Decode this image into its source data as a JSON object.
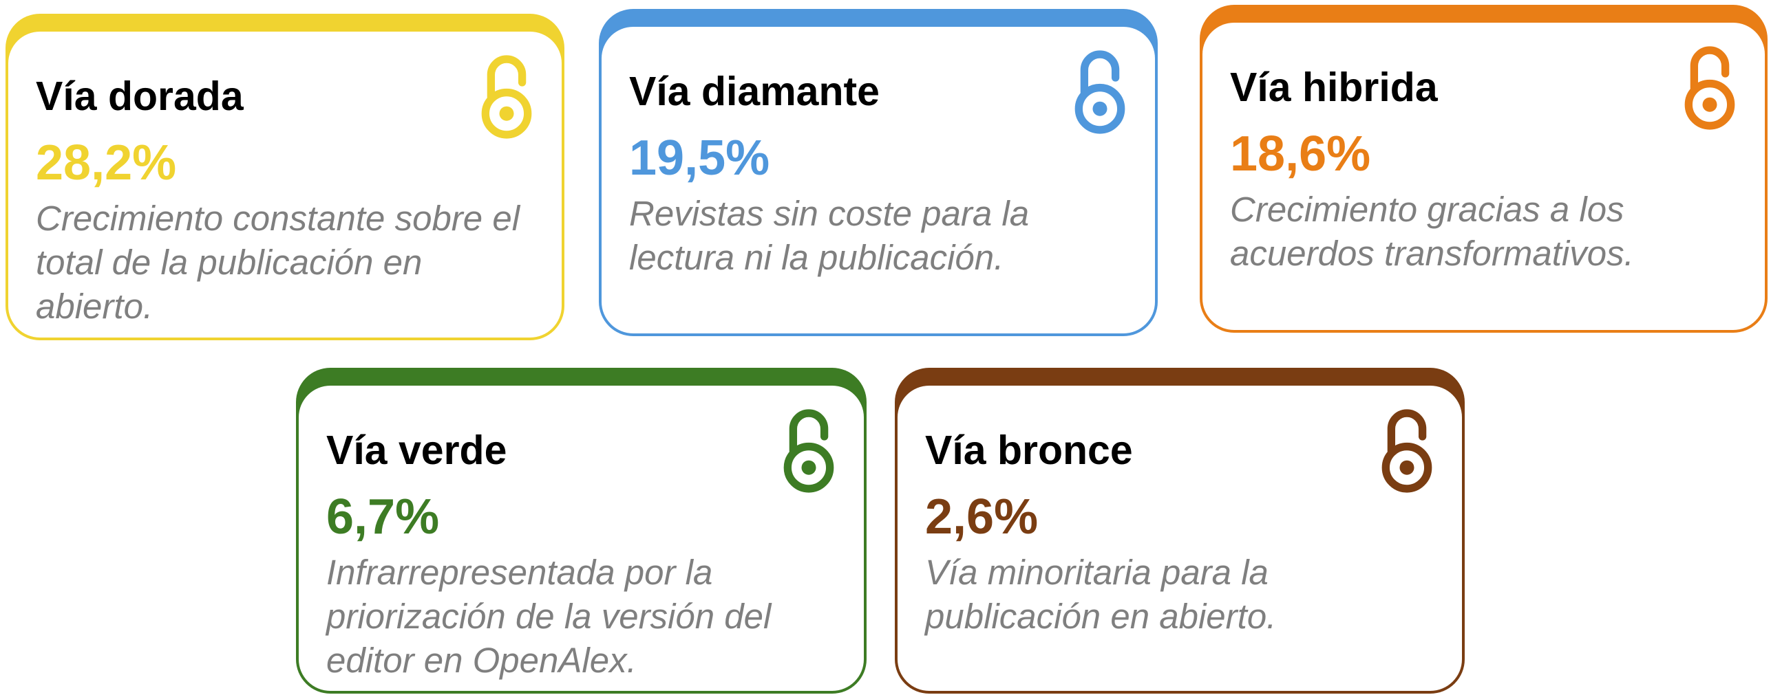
{
  "cards": [
    {
      "title": "Vía dorada",
      "value": "28,2%",
      "description": "Crecimiento constante sobre el total de la publicación en abierto.",
      "color": "#f0d330"
    },
    {
      "title": "Vía diamante",
      "value": "19,5%",
      "description": "Revistas sin coste para la lectura ni la publicación.",
      "color": "#4f97dc"
    },
    {
      "title": "Vía hibrida",
      "value": "18,6%",
      "description": "Crecimiento gracias a los acuerdos transformativos.",
      "color": "#e97e16"
    },
    {
      "title": "Vía verde",
      "value": "6,7%",
      "description": "Infrarrepresentada por la priorización de la versión del editor en OpenAlex.",
      "color": "#3d7c24"
    },
    {
      "title": "Vía bronce",
      "value": "2,6%",
      "description": "Vía minoritaria para la publicación en abierto.",
      "color": "#7a3d12"
    }
  ]
}
